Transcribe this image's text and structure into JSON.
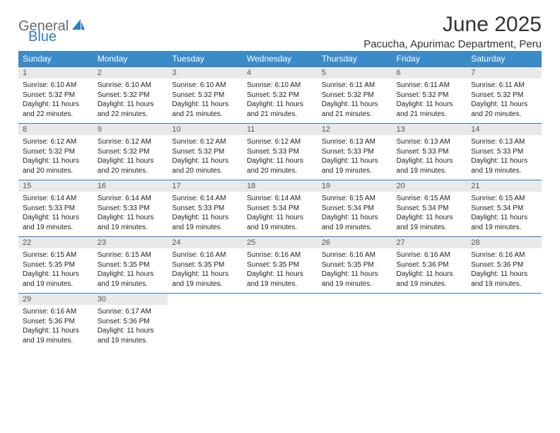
{
  "brand": {
    "part1": "General",
    "part2": "Blue"
  },
  "title": "June 2025",
  "location": "Pacucha, Apurimac Department, Peru",
  "header_bg": "#3b8bc9",
  "daynum_bg": "#e9e9e9",
  "divider_color": "#2f7fc2",
  "columns": [
    "Sunday",
    "Monday",
    "Tuesday",
    "Wednesday",
    "Thursday",
    "Friday",
    "Saturday"
  ],
  "weeks": [
    [
      {
        "n": "1",
        "sr": "6:10 AM",
        "ss": "5:32 PM",
        "dl": "11 hours and 22 minutes."
      },
      {
        "n": "2",
        "sr": "6:10 AM",
        "ss": "5:32 PM",
        "dl": "11 hours and 22 minutes."
      },
      {
        "n": "3",
        "sr": "6:10 AM",
        "ss": "5:32 PM",
        "dl": "11 hours and 21 minutes."
      },
      {
        "n": "4",
        "sr": "6:10 AM",
        "ss": "5:32 PM",
        "dl": "11 hours and 21 minutes."
      },
      {
        "n": "5",
        "sr": "6:11 AM",
        "ss": "5:32 PM",
        "dl": "11 hours and 21 minutes."
      },
      {
        "n": "6",
        "sr": "6:11 AM",
        "ss": "5:32 PM",
        "dl": "11 hours and 21 minutes."
      },
      {
        "n": "7",
        "sr": "6:11 AM",
        "ss": "5:32 PM",
        "dl": "11 hours and 20 minutes."
      }
    ],
    [
      {
        "n": "8",
        "sr": "6:12 AM",
        "ss": "5:32 PM",
        "dl": "11 hours and 20 minutes."
      },
      {
        "n": "9",
        "sr": "6:12 AM",
        "ss": "5:32 PM",
        "dl": "11 hours and 20 minutes."
      },
      {
        "n": "10",
        "sr": "6:12 AM",
        "ss": "5:32 PM",
        "dl": "11 hours and 20 minutes."
      },
      {
        "n": "11",
        "sr": "6:12 AM",
        "ss": "5:33 PM",
        "dl": "11 hours and 20 minutes."
      },
      {
        "n": "12",
        "sr": "6:13 AM",
        "ss": "5:33 PM",
        "dl": "11 hours and 19 minutes."
      },
      {
        "n": "13",
        "sr": "6:13 AM",
        "ss": "5:33 PM",
        "dl": "11 hours and 19 minutes."
      },
      {
        "n": "14",
        "sr": "6:13 AM",
        "ss": "5:33 PM",
        "dl": "11 hours and 19 minutes."
      }
    ],
    [
      {
        "n": "15",
        "sr": "6:14 AM",
        "ss": "5:33 PM",
        "dl": "11 hours and 19 minutes."
      },
      {
        "n": "16",
        "sr": "6:14 AM",
        "ss": "5:33 PM",
        "dl": "11 hours and 19 minutes."
      },
      {
        "n": "17",
        "sr": "6:14 AM",
        "ss": "5:33 PM",
        "dl": "11 hours and 19 minutes."
      },
      {
        "n": "18",
        "sr": "6:14 AM",
        "ss": "5:34 PM",
        "dl": "11 hours and 19 minutes."
      },
      {
        "n": "19",
        "sr": "6:15 AM",
        "ss": "5:34 PM",
        "dl": "11 hours and 19 minutes."
      },
      {
        "n": "20",
        "sr": "6:15 AM",
        "ss": "5:34 PM",
        "dl": "11 hours and 19 minutes."
      },
      {
        "n": "21",
        "sr": "6:15 AM",
        "ss": "5:34 PM",
        "dl": "11 hours and 19 minutes."
      }
    ],
    [
      {
        "n": "22",
        "sr": "6:15 AM",
        "ss": "5:35 PM",
        "dl": "11 hours and 19 minutes."
      },
      {
        "n": "23",
        "sr": "6:15 AM",
        "ss": "5:35 PM",
        "dl": "11 hours and 19 minutes."
      },
      {
        "n": "24",
        "sr": "6:16 AM",
        "ss": "5:35 PM",
        "dl": "11 hours and 19 minutes."
      },
      {
        "n": "25",
        "sr": "6:16 AM",
        "ss": "5:35 PM",
        "dl": "11 hours and 19 minutes."
      },
      {
        "n": "26",
        "sr": "6:16 AM",
        "ss": "5:35 PM",
        "dl": "11 hours and 19 minutes."
      },
      {
        "n": "27",
        "sr": "6:16 AM",
        "ss": "5:36 PM",
        "dl": "11 hours and 19 minutes."
      },
      {
        "n": "28",
        "sr": "6:16 AM",
        "ss": "5:36 PM",
        "dl": "11 hours and 19 minutes."
      }
    ],
    [
      {
        "n": "29",
        "sr": "6:16 AM",
        "ss": "5:36 PM",
        "dl": "11 hours and 19 minutes."
      },
      {
        "n": "30",
        "sr": "6:17 AM",
        "ss": "5:36 PM",
        "dl": "11 hours and 19 minutes."
      },
      null,
      null,
      null,
      null,
      null
    ]
  ],
  "labels": {
    "sunrise": "Sunrise:",
    "sunset": "Sunset:",
    "daylight": "Daylight:"
  }
}
